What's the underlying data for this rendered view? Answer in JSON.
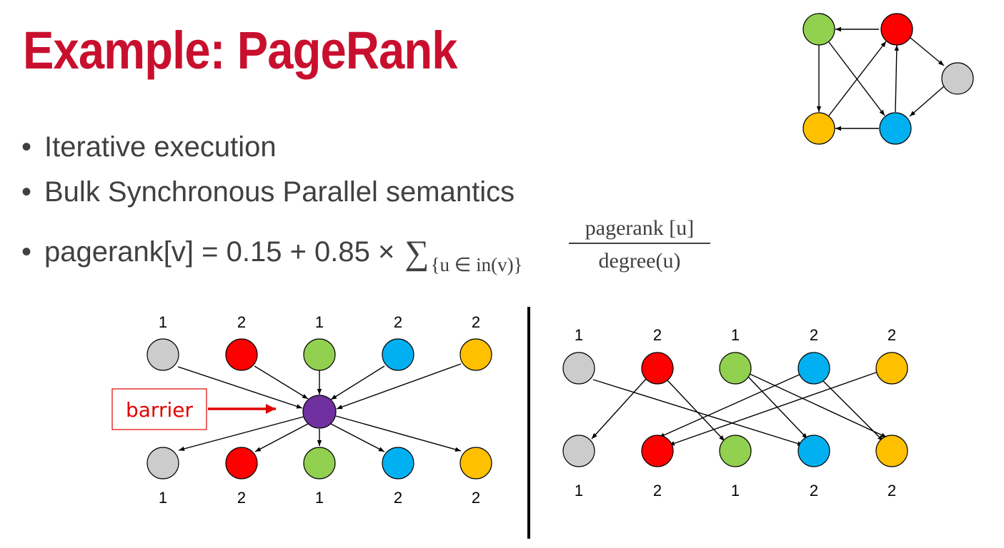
{
  "title": "Example: PageRank",
  "bullets": {
    "item1": "Iterative execution",
    "item2": "Bulk Synchronous Parallel semantics",
    "formula_prefix": "pagerank[v] = 0.15 + 0.85 ×",
    "sigma": "∑",
    "sum_subscript": "{u ∈ in(v)}",
    "fraction_numerator": "pagerank [u]",
    "fraction_denominator": "degree(u)"
  },
  "colors": {
    "title": "#c8102e",
    "gray": "#cccccc",
    "red": "#ff0000",
    "green": "#92d050",
    "blue": "#00b0f0",
    "orange": "#ffc000",
    "purple": "#7030a0",
    "barrier": "#e00000"
  },
  "barrier_label": "barrier",
  "left_diagram": {
    "top_labels": [
      "1",
      "2",
      "1",
      "2",
      "2"
    ],
    "bottom_labels": [
      "1",
      "2",
      "1",
      "2",
      "2"
    ]
  },
  "right_diagram": {
    "top_labels": [
      "1",
      "2",
      "1",
      "2",
      "2"
    ],
    "bottom_labels": [
      "1",
      "2",
      "1",
      "2",
      "2"
    ]
  }
}
